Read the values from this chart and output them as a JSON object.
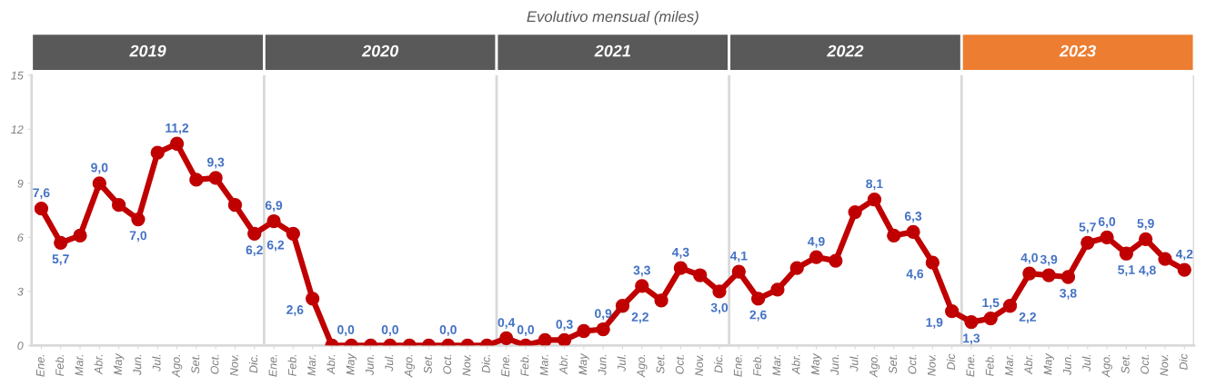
{
  "chart_data": {
    "type": "line",
    "title": "Evolutivo mensual (miles)",
    "categories": [
      "Ene.",
      "Feb.",
      "Mar.",
      "Abr.",
      "May",
      "Jun.",
      "Jul.",
      "Ago.",
      "Set.",
      "Oct.",
      "Nov.",
      "Dic.",
      "Ene.",
      "Feb.",
      "Mar.",
      "Abr.",
      "May",
      "Jun.",
      "Jul.",
      "Ago.",
      "Set.",
      "Oct.",
      "Nov.",
      "Dic.",
      "Ene.",
      "Feb.",
      "Mar.",
      "Abr.",
      "May",
      "Jun.",
      "Jul.",
      "Ago.",
      "Set.",
      "Oct.",
      "Nov.",
      "Dic.",
      "Ene.",
      "Feb.",
      "Mar.",
      "Abr.",
      "May",
      "Jun.",
      "Jul.",
      "Ago.",
      "Set.",
      "Oct.",
      "Nov.",
      "Dic",
      "Ene.",
      "Feb.",
      "Mar.",
      "Abr.",
      "May",
      "Jun.",
      "Jul.",
      "Ago.",
      "Set.",
      "Oct.",
      "Nov.",
      "Dic"
    ],
    "ylim": [
      0,
      15
    ],
    "yticks": [
      0,
      3,
      6,
      9,
      12,
      15
    ],
    "grid": false,
    "marker": "circle",
    "line_style": "solid",
    "annotations": [
      "2019",
      "2020",
      "2021",
      "2022",
      "2023"
    ],
    "series": [
      {
        "color": "#c00000",
        "values": [
          7.6,
          5.7,
          6.1,
          9.0,
          7.8,
          7.0,
          10.7,
          11.2,
          9.2,
          9.3,
          7.8,
          6.2,
          6.9,
          6.2,
          2.6,
          0.0,
          0.0,
          0.0,
          0.0,
          0.0,
          0.0,
          0.0,
          0.0,
          0.0,
          0.4,
          0.0,
          0.3,
          0.3,
          0.8,
          0.9,
          2.2,
          3.3,
          2.5,
          4.3,
          3.9,
          3.0,
          4.1,
          2.6,
          3.1,
          4.3,
          4.9,
          4.7,
          7.4,
          8.1,
          6.1,
          6.3,
          4.6,
          1.9,
          1.3,
          1.5,
          2.2,
          4.0,
          3.9,
          3.8,
          5.7,
          6.0,
          5.1,
          5.9,
          4.8,
          4.2
        ],
        "value_labels": [
          "7,6",
          "5,7",
          null,
          "9,0",
          null,
          "7,0",
          null,
          "11,2",
          null,
          "9,3",
          null,
          "6,2",
          "6,9",
          "6,2",
          "2,6",
          "0,0",
          null,
          null,
          "0,0",
          null,
          null,
          "0,0",
          null,
          null,
          "0,4",
          "0,0",
          null,
          "0,3",
          null,
          "0,9",
          "2,2",
          "3,3",
          null,
          "4,3",
          null,
          "3,0",
          "4,1",
          "2,6",
          null,
          null,
          "4,9",
          null,
          null,
          "8,1",
          null,
          "6,3",
          "4,6",
          "1,9",
          "1,3",
          "1,5",
          "2,2",
          "4,0",
          "3,9",
          "3,8",
          "5,7",
          "6,0",
          "5,1",
          "5,9",
          "4,8",
          "4,2"
        ]
      }
    ]
  }
}
